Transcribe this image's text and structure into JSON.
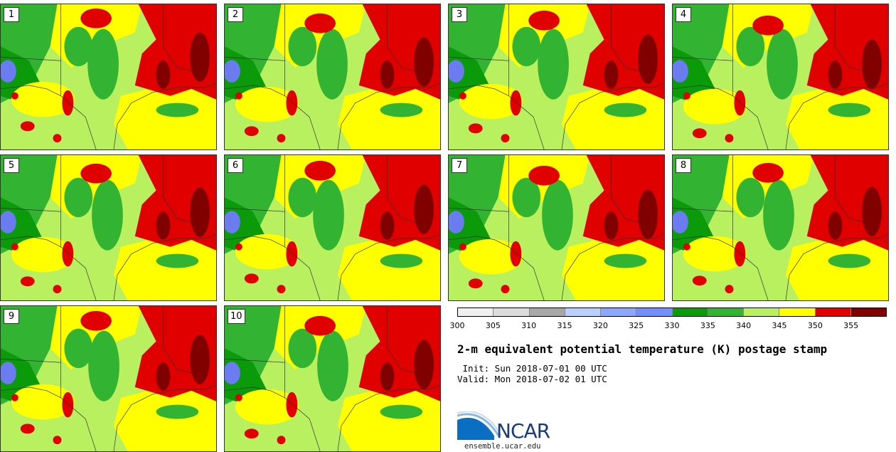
{
  "panels": [
    {
      "label": "1"
    },
    {
      "label": "2"
    },
    {
      "label": "3"
    },
    {
      "label": "4"
    },
    {
      "label": "5"
    },
    {
      "label": "6"
    },
    {
      "label": "7"
    },
    {
      "label": "8"
    },
    {
      "label": "9"
    },
    {
      "label": "10"
    }
  ],
  "colorbar": {
    "colors": [
      "#f0f0f0",
      "#dcdcdc",
      "#a8a8a8",
      "#bcd0ff",
      "#8ca8ff",
      "#7290ff",
      "#0a9a0a",
      "#32b432",
      "#b8f060",
      "#ffff00",
      "#e00000",
      "#800000"
    ],
    "tick_labels": [
      "300",
      "305",
      "310",
      "315",
      "320",
      "325",
      "330",
      "335",
      "340",
      "345",
      "350",
      "355"
    ]
  },
  "title": "2-m equivalent potential temperature (K) postage stamp",
  "init": " Init: Sun 2018-07-01 00 UTC",
  "valid": "Valid: Mon 2018-07-02 01 UTC",
  "logo": {
    "text": "NCAR",
    "color": "#1a3a78"
  },
  "url": "ensemble.ucar.edu",
  "map_colors": {
    "green_dark": "#0a9a0a",
    "green": "#32b432",
    "green_light": "#b8f060",
    "yellow": "#ffff00",
    "red": "#e00000",
    "red_dark": "#800000",
    "lake": "#6a7cf0"
  }
}
